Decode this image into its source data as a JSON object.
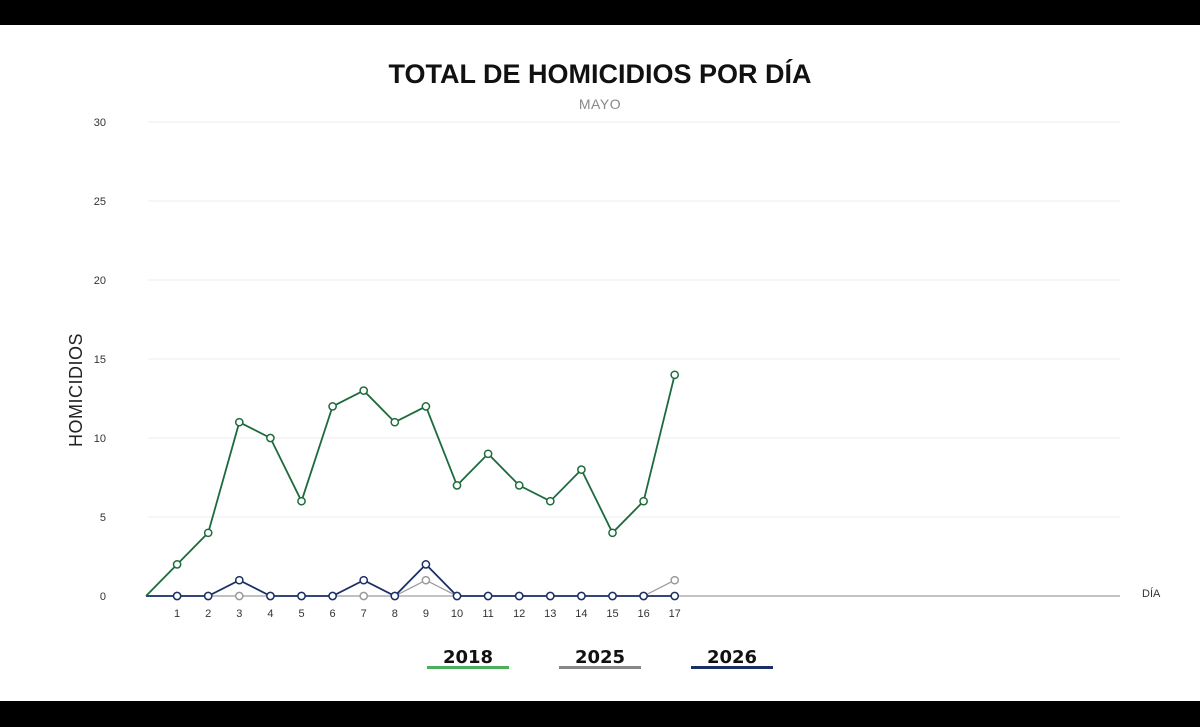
{
  "chart_data": {
    "type": "line",
    "title": "TOTAL DE HOMICIDIOS POR DÍA",
    "subtitle": "MAYO",
    "ylabel": "HOMICIDIOS",
    "xlabel": "DÍA",
    "ylim": [
      0,
      30
    ],
    "yticks": [
      0,
      5,
      10,
      15,
      20,
      25,
      30
    ],
    "x": [
      1,
      2,
      3,
      4,
      5,
      6,
      7,
      8,
      9,
      10,
      11,
      12,
      13,
      14,
      15,
      16,
      17
    ],
    "grid": true,
    "legend_position": "bottom",
    "series": [
      {
        "name": "2018",
        "color": "#1d6b3c",
        "legend_color": "#4caf5a",
        "values": [
          2,
          4,
          11,
          10,
          6,
          12,
          13,
          11,
          12,
          7,
          9,
          7,
          6,
          8,
          4,
          6,
          14
        ]
      },
      {
        "name": "2025",
        "color": "#9a9a9a",
        "legend_color": "#888888",
        "values": [
          0,
          0,
          0,
          0,
          0,
          0,
          0,
          0,
          1,
          0,
          0,
          0,
          0,
          0,
          0,
          0,
          1
        ]
      },
      {
        "name": "2026",
        "color": "#1a2f66",
        "legend_color": "#1a2f66",
        "values": [
          0,
          0,
          1,
          0,
          0,
          0,
          1,
          0,
          2,
          0,
          0,
          0,
          0,
          0,
          0,
          0,
          0
        ]
      }
    ]
  }
}
